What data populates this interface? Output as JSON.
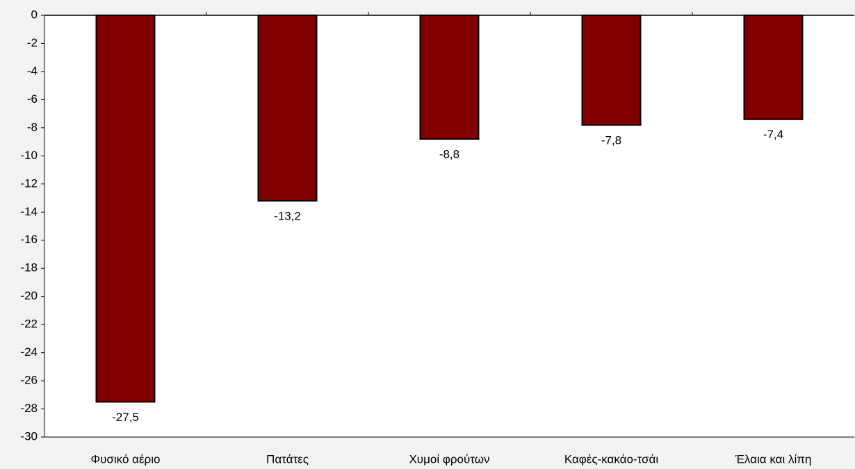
{
  "chart_data": {
    "type": "bar",
    "categories": [
      "Φυσικό αέριο",
      "Πατάτες",
      "Χυμοί φρούτων",
      "Καφές-κακάο-τσάι",
      "Έλαια και λίπη"
    ],
    "values": [
      -27.5,
      -13.2,
      -8.8,
      -7.8,
      -7.4
    ],
    "value_labels": [
      "-27,5",
      "-13,2",
      "-8,8",
      "-7,8",
      "-7,4"
    ],
    "color": "#800000",
    "ylim": [
      -30,
      0
    ],
    "yticks": [
      -30,
      -28,
      -26,
      -24,
      -22,
      -20,
      -18,
      -16,
      -14,
      -12,
      -10,
      -8,
      -6,
      -4,
      -2,
      0
    ],
    "grid": false
  }
}
